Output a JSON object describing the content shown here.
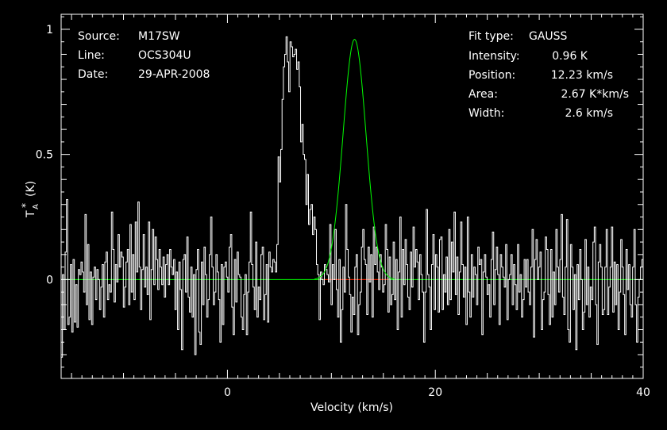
{
  "chart_data": {
    "type": "line",
    "xlabel": "Velocity (km/s)",
    "ylabel_main": "T",
    "ylabel_sub": "A",
    "ylabel_sup": "*",
    "ylabel_unit": "(K)",
    "xlim": [
      -16,
      40
    ],
    "ylim": [
      -0.395,
      1.06
    ],
    "x_ticks": [
      0,
      20,
      40
    ],
    "y_ticks": [
      0,
      0.5,
      1
    ],
    "y_tick_labels": [
      "0",
      "0.5",
      "1"
    ],
    "colors": {
      "spectrum": "#ffffff",
      "fit": "#00ff00",
      "baseline": "#00ff00",
      "baseline_window": "#ff0000",
      "frame": "#ffffff",
      "background": "#000000"
    },
    "info_left": [
      {
        "key": "Source:",
        "value": "M17SW"
      },
      {
        "key": "Line:",
        "value": "OCS304U"
      },
      {
        "key": "Date:",
        "value": "29-APR-2008"
      }
    ],
    "info_right": [
      {
        "key": "Fit type:",
        "value": "GAUSS"
      },
      {
        "key": "Intensity:",
        "value": "0.96 K"
      },
      {
        "key": "Position:",
        "value": "12.23 km/s"
      },
      {
        "key": "Area:",
        "value": "2.67 K*km/s"
      },
      {
        "key": "Width:",
        "value": "2.6 km/s"
      }
    ],
    "fit": {
      "amplitude": 0.96,
      "center": 12.23,
      "fwhm": 2.6
    },
    "baseline_window": [
      9.2,
      15.5
    ],
    "series": [
      {
        "values": [
          -0.31,
          0.02,
          -0.2,
          0.11,
          0.32,
          -0.18,
          -0.15,
          0.06,
          -0.21,
          0.08,
          -0.17,
          -0.02,
          -0.19,
          0.04,
          0.02,
          0.07,
          0.03,
          -0.05,
          0.26,
          -0.1,
          0.14,
          -0.16,
          0.03,
          -0.18,
          0.01,
          0.05,
          -0.08,
          0.04,
          0.0,
          -0.12,
          -0.03,
          0.06,
          -0.15,
          0.07,
          0.11,
          -0.08,
          -0.02,
          -0.05,
          0.27,
          0.12,
          -0.09,
          0.06,
          -0.01,
          0.18,
          0.05,
          0.11,
          0.09,
          -0.11,
          -0.03,
          0.07,
          0.12,
          -0.1,
          0.22,
          -0.05,
          0.1,
          -0.08,
          0.23,
          0.03,
          0.31,
          0.05,
          -0.12,
          0.04,
          0.18,
          -0.03,
          0.05,
          -0.06,
          0.23,
          -0.16,
          0.04,
          0.2,
          -0.02,
          0.17,
          0.08,
          -0.04,
          0.12,
          0.05,
          -0.02,
          0.09,
          -0.07,
          0.06,
          0.1,
          -0.02,
          0.12,
          0.05,
          0.02,
          0.08,
          -0.12,
          0.03,
          -0.2,
          0.07,
          -0.04,
          -0.28,
          0.08,
          0.1,
          -0.05,
          0.17,
          -0.07,
          -0.13,
          0.05,
          -0.15,
          0.02,
          -0.3,
          0.04,
          0.12,
          -0.21,
          -0.26,
          0.07,
          -0.1,
          0.13,
          0.02,
          -0.15,
          -0.08,
          0.1,
          0.25,
          0.05,
          -0.1,
          -0.05,
          0.1,
          0.03,
          -0.08,
          -0.25,
          0.06,
          -0.18,
          0.05,
          0.07,
          0.01,
          -0.05,
          0.13,
          0.18,
          -0.11,
          -0.22,
          0.08,
          -0.09,
          0.11,
          0.02,
          0.01,
          -0.15,
          -0.2,
          -0.06,
          0.02,
          -0.22,
          -0.05,
          0.07,
          0.27,
          0.06,
          -0.03,
          -0.12,
          0.15,
          -0.15,
          -0.03,
          -0.08,
          0.1,
          0.13,
          -0.16,
          -0.06,
          0.06,
          -0.17,
          0.11,
          0.05,
          0.03,
          0.08,
          0.07,
          0.03,
          0.14,
          0.49,
          0.39,
          0.52,
          0.72,
          0.85,
          0.9,
          0.97,
          0.87,
          0.75,
          0.95,
          0.93,
          0.89,
          0.9,
          0.92,
          0.84,
          0.87,
          0.77,
          0.55,
          0.62,
          0.5,
          0.48,
          0.3,
          0.42,
          0.22,
          0.28,
          0.3,
          0.18,
          0.25,
          0.2,
          0.06,
          0.02,
          -0.16,
          0.03,
          0.0,
          -0.02,
          0.06,
          0.04,
          0.02,
          -0.01,
          0.22,
          -0.1,
          0.06,
          0.0,
          0.2,
          -0.04,
          -0.15,
          0.08,
          -0.25,
          -0.12,
          0.05,
          -0.05,
          0.3,
          0.12,
          0.01,
          -0.06,
          -0.21,
          -0.07,
          -0.14,
          0.05,
          0.1,
          -0.22,
          -0.1,
          -0.05,
          0.13,
          0.2,
          0.08,
          0.06,
          -0.14,
          0.13,
          -0.01,
          0.1,
          -0.15,
          0.21,
          0.06,
          0.13,
          0.03,
          -0.04,
          0.1,
          0.05,
          -0.05,
          -0.02,
          0.22,
          0.12,
          -0.13,
          0.09,
          -0.1,
          -0.06,
          0.15,
          -0.08,
          0.08,
          -0.2,
          0.03,
          0.25,
          -0.15,
          0.12,
          -0.02,
          0.16,
          0.06,
          -0.07,
          -0.12,
          0.11,
          -0.03,
          0.21,
          0.05,
          0.12,
          0.07,
          -0.08,
          0.1,
          0.02,
          -0.05,
          -0.25,
          -0.05,
          0.28,
          0.02,
          -0.03,
          -0.2,
          0.06,
          0.18,
          -0.12,
          0.1,
          0.05,
          -0.13,
          0.16,
          0.17,
          -0.12,
          0.02,
          -0.05,
          0.09,
          -0.1,
          0.2,
          -0.08,
          0.15,
          0.03,
          0.27,
          -0.06,
          0.09,
          -0.14,
          0.03,
          0.23,
          0.06,
          -0.07,
          0.05,
          -0.18,
          0.25,
          -0.05,
          -0.15,
          0.1,
          -0.07,
          0.05,
          0.02,
          -0.1,
          0.13,
          0.06,
          0.08,
          -0.22,
          0.03,
          0.1,
          0.01,
          -0.06,
          -0.02,
          -0.15,
          0.08,
          0.19,
          -0.1,
          0.04,
          0.13,
          0.02,
          -0.18,
          0.1,
          0.05,
          0.01,
          -0.03,
          0.14,
          -0.16,
          0.0,
          0.02,
          0.1,
          -0.1,
          0.06,
          -0.02,
          -0.12,
          0.14,
          -0.05,
          0.02,
          -0.15,
          -0.08,
          0.08,
          -0.03,
          0.08,
          -0.05,
          -0.1,
          0.05,
          0.2,
          -0.23,
          0.08,
          0.16,
          0.0,
          0.05,
          0.11,
          -0.2,
          -0.08,
          -0.05,
          0.17,
          0.12,
          -0.06,
          -0.18,
          0.12,
          -0.15,
          0.03,
          -0.1,
          0.2,
          0.05,
          -0.05,
          0.08,
          0.26,
          -0.07,
          -0.14,
          0.05,
          0.24,
          -0.2,
          -0.25,
          0.14,
          0.05,
          -0.12,
          0.02,
          -0.28,
          0.06,
          -0.08,
          0.12,
          0.0,
          -0.2,
          -0.13,
          0.16,
          -0.1,
          0.05,
          -0.15,
          -0.03,
          -0.08,
          0.15,
          0.21,
          -0.1,
          -0.26,
          0.07,
          0.14,
          0.05,
          -0.14,
          -0.12,
          0.05,
          0.2,
          -0.14,
          -0.03,
          0.05,
          0.21,
          -0.13,
          0.07,
          -0.1,
          0.06,
          -0.2,
          -0.05,
          0.16,
          0.05,
          -0.06,
          -0.22,
          0.12,
          -0.04,
          0.06,
          -0.1,
          -0.15,
          0.05,
          0.2,
          -0.1,
          -0.25,
          -0.07,
          0.0,
          0.05,
          0.08
        ]
      }
    ]
  }
}
